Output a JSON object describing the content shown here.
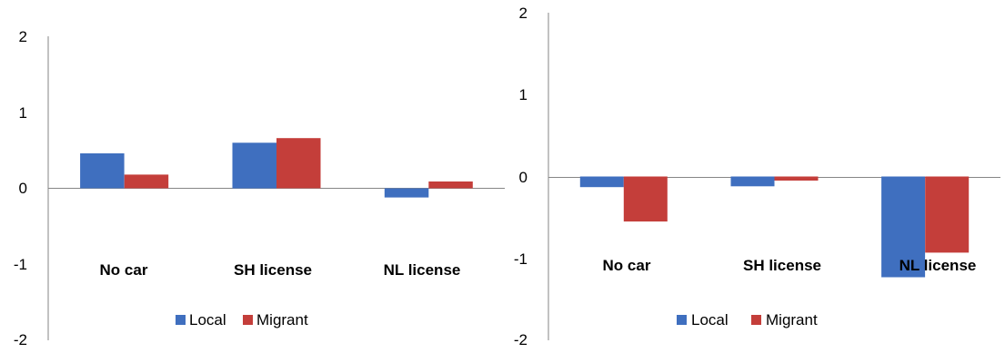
{
  "colors": {
    "local": "#3f6fbf",
    "migrant": "#c43e3a"
  },
  "chart_data": [
    {
      "type": "bar",
      "categories": [
        "No car",
        "SH license",
        "NL license"
      ],
      "series": [
        {
          "name": "Local",
          "values": [
            0.46,
            0.6,
            -0.12
          ]
        },
        {
          "name": "Migrant",
          "values": [
            0.18,
            0.66,
            0.09
          ]
        }
      ],
      "ylim": [
        -2,
        2
      ],
      "yticks": [
        "2",
        "1",
        "0",
        "-1",
        "-2"
      ],
      "legend": [
        "Local",
        "Migrant"
      ],
      "legend_position": "bottom",
      "grid": false
    },
    {
      "type": "bar",
      "categories": [
        "No car",
        "SH license",
        "NL license"
      ],
      "series": [
        {
          "name": "Local",
          "values": [
            -0.13,
            -0.12,
            -1.23
          ]
        },
        {
          "name": "Migrant",
          "values": [
            -0.55,
            -0.05,
            -0.93
          ]
        }
      ],
      "ylim": [
        -2,
        2
      ],
      "yticks": [
        "2",
        "1",
        "0",
        "-1",
        "-2"
      ],
      "legend": [
        "Local",
        "Migrant"
      ],
      "legend_position": "bottom",
      "grid": false
    }
  ]
}
